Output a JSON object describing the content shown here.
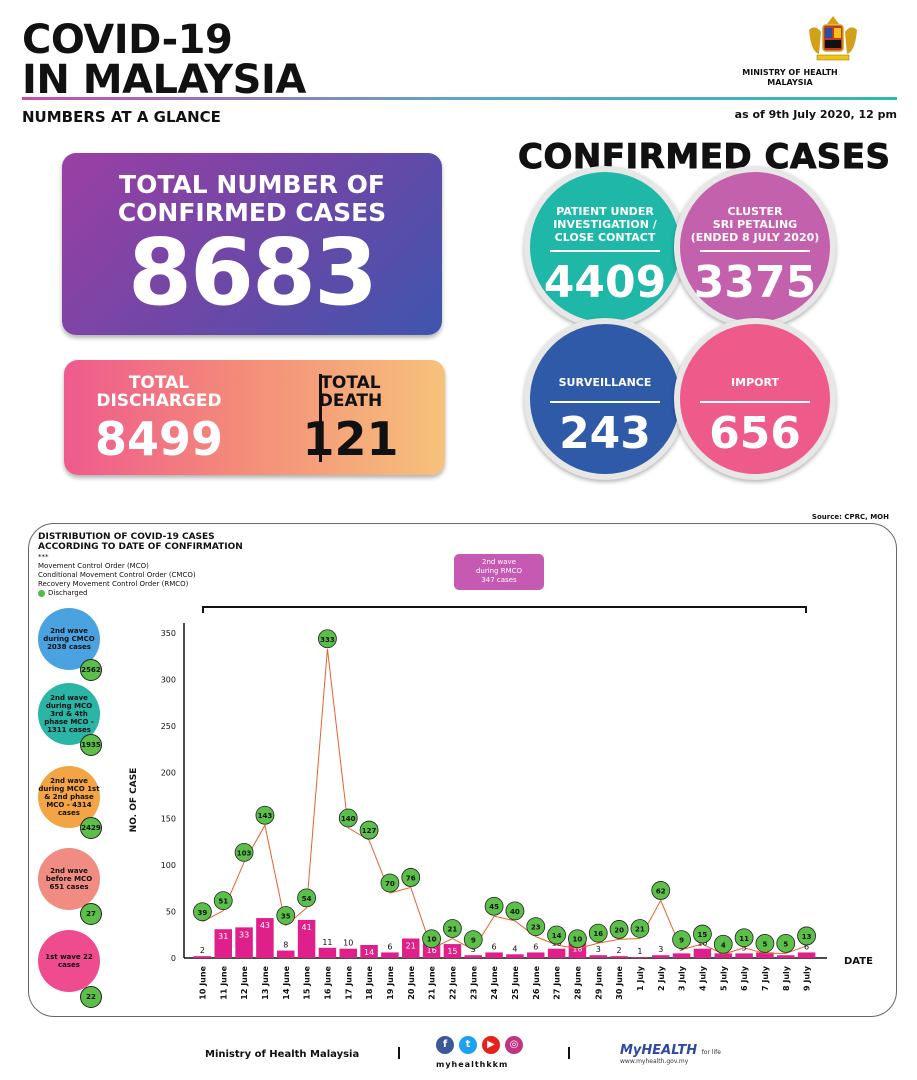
{
  "header": {
    "title_line1": "COVID-19",
    "title_line2": "IN MALAYSIA",
    "ministry_line1": "MINISTRY OF HEALTH",
    "ministry_line2": "MALAYSIA",
    "subtitle": "NUMBERS AT A GLANCE",
    "as_of": "as of 9th July 2020, 12 pm"
  },
  "total_confirmed": {
    "label_line1": "TOTAL NUMBER OF",
    "label_line2": "CONFIRMED CASES",
    "value": "8683"
  },
  "discharged": {
    "label_line1": "TOTAL",
    "label_line2": "DISCHARGED",
    "value": "8499"
  },
  "death": {
    "label_line1": "TOTAL",
    "label_line2": "DEATH",
    "value": "121"
  },
  "confirmed_cases": {
    "heading": "CONFIRMED CASES",
    "pui": {
      "l1": "PATIENT UNDER",
      "l2": "INVESTIGATION /",
      "l3": "CLOSE CONTACT",
      "value": "4409",
      "color": "#1fb8a8"
    },
    "cluster": {
      "l1": "CLUSTER",
      "l2": "SRI PETALING",
      "l3": "(ENDED 8 JULY 2020)",
      "value": "3375",
      "color": "#c461ad"
    },
    "surveillance": {
      "l1": "SURVEILLANCE",
      "value": "243",
      "color": "#2f5aa8"
    },
    "import": {
      "l1": "IMPORT",
      "value": "656",
      "color": "#ee5b8b"
    }
  },
  "source": "Source: CPRC, MOH",
  "distribution": {
    "title_line1": "DISTRIBUTION OF COVID-19 CASES",
    "title_line2": "ACCORDING TO DATE OF CONFIRMATION",
    "legend_marker": "***",
    "legend_mco": "Movement Control Order (MCO)",
    "legend_cmco": "Conditional Movement Control Order (CMCO)",
    "legend_rmco": "Recovery Movement Control Order (RMCO)",
    "legend_discharged": "Discharged",
    "rmco_box": {
      "l1": "2nd wave",
      "l2": "during RMCO",
      "l3": "347 cases"
    },
    "waves": [
      {
        "text": "2nd wave during CMCO 2038 cases",
        "discharged": "2562",
        "color": "#4aa3e0"
      },
      {
        "text": "2nd wave during MCO 3rd & 4th phase MCO - 1311 cases",
        "discharged": "1935",
        "color": "#2bb5a6"
      },
      {
        "text": "2nd wave during MCO 1st & 2nd phase MCO - 4314 cases",
        "discharged": "2429",
        "color": "#f3a444"
      },
      {
        "text": "2nd wave before MCO 651 cases",
        "discharged": "27",
        "color": "#f08c82"
      },
      {
        "text": "1st wave 22 cases",
        "discharged": "22",
        "color": "#ee4c8e"
      }
    ]
  },
  "chart_data": {
    "type": "bar",
    "title": "",
    "xlabel": "DATE",
    "ylabel": "NO. OF CASE",
    "ylim": [
      0,
      350
    ],
    "yticks": [
      0,
      50,
      100,
      150,
      200,
      250,
      300,
      350
    ],
    "categories": [
      "10 June",
      "11 June",
      "12 June",
      "13 June",
      "14 June",
      "15 June",
      "16 June",
      "17 June",
      "18 June",
      "19 June",
      "20 June",
      "21 June",
      "22 June",
      "23 June",
      "24 June",
      "25 June",
      "26 June",
      "27 June",
      "28 June",
      "29 June",
      "30 June",
      "1 July",
      "2 July",
      "3 July",
      "4 July",
      "5 July",
      "6 July",
      "7 July",
      "8 July",
      "9 July"
    ],
    "series": [
      {
        "name": "Confirmed",
        "values": [
          2,
          31,
          33,
          43,
          8,
          41,
          11,
          10,
          14,
          6,
          21,
          16,
          15,
          3,
          6,
          4,
          6,
          10,
          18,
          3,
          2,
          1,
          3,
          5,
          10,
          5,
          5,
          6,
          3,
          6
        ],
        "color": "#e0208a"
      },
      {
        "name": "Discharged",
        "values": [
          39,
          51,
          103,
          143,
          35,
          54,
          333,
          140,
          127,
          70,
          76,
          10,
          21,
          9,
          45,
          40,
          23,
          14,
          10,
          16,
          20,
          21,
          62,
          9,
          15,
          4,
          11,
          5,
          5,
          13
        ],
        "color": "#5bbf49"
      }
    ]
  },
  "footer": {
    "ministry": "Ministry of Health Malaysia",
    "handle": "myhealthkkm",
    "brand": "MyHEALTH",
    "brand_tag": "for life",
    "brand_url": "www.myhealth.gov.my"
  }
}
